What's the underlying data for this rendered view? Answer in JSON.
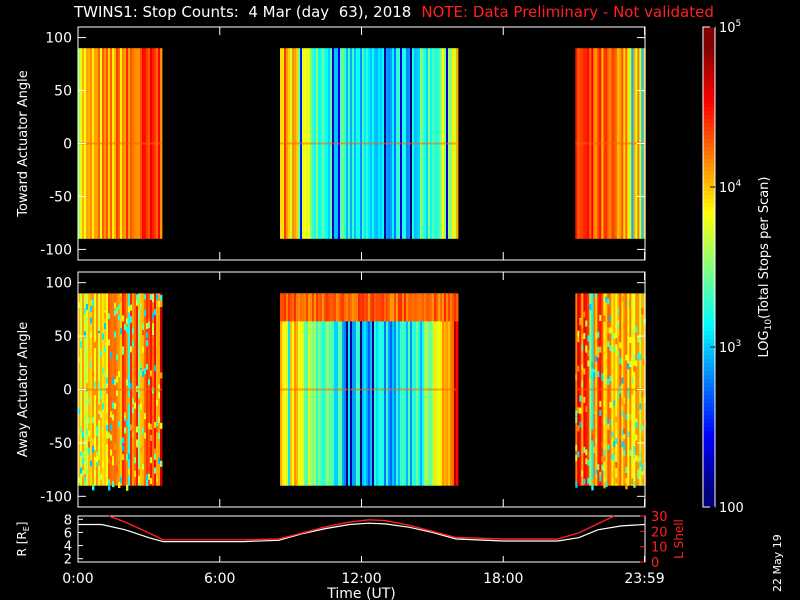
{
  "header": {
    "title": "TWINS1: Stop Counts:  4 Mar (day  63), 2018",
    "note": "NOTE: Data Preliminary - Not validated"
  },
  "date_stamp": "22 May 19",
  "colors": {
    "background": "#000000",
    "note": "#ff2020",
    "lshell": "#ff2020",
    "radius": "#ffffff"
  },
  "chart_data": [
    {
      "type": "heatmap",
      "name": "toward",
      "ylabel": "Toward Actuator Angle",
      "ylim": [
        -110,
        110
      ],
      "yticks": [
        "100",
        "50",
        "0",
        "-50",
        "-100"
      ],
      "xlim": [
        0,
        24
      ],
      "data_ylim": [
        -90,
        90
      ],
      "segments": [
        {
          "start": 0.0,
          "end": 3.55,
          "profile": "edge"
        },
        {
          "start": 8.55,
          "end": 16.0,
          "profile": "mid"
        },
        {
          "start": 21.05,
          "end": 23.98,
          "profile": "edge"
        }
      ],
      "zscale": "log",
      "zlim": [
        100,
        100000
      ]
    },
    {
      "type": "heatmap",
      "name": "away",
      "ylabel": "Away Actuator Angle",
      "ylim": [
        -110,
        110
      ],
      "yticks": [
        "100",
        "50",
        "0",
        "-50",
        "-100"
      ],
      "xlim": [
        0,
        24
      ],
      "data_ylim": [
        -90,
        90
      ],
      "segments": [
        {
          "start": 0.0,
          "end": 3.55,
          "profile": "edge"
        },
        {
          "start": 8.55,
          "end": 16.0,
          "profile": "mid"
        },
        {
          "start": 21.05,
          "end": 23.98,
          "profile": "edge"
        }
      ],
      "zscale": "log",
      "zlim": [
        100,
        100000
      ]
    },
    {
      "type": "line",
      "name": "orbit",
      "ylabel": "R [Rₑ]",
      "ylabel_base": "R [R",
      "ylabel_sub": "E",
      "ylabel_end": "]",
      "ylim": [
        1.5,
        8.5
      ],
      "yticks": [
        "8",
        "6",
        "4",
        "2"
      ],
      "y2label": "L Shell",
      "y2lim": [
        0,
        30
      ],
      "y2ticks": [
        "30",
        "20",
        "10",
        "0"
      ],
      "xlabel": "Time (UT)",
      "xlim": [
        0,
        24
      ],
      "xticks": [
        "0:00",
        "6:00",
        "12:00",
        "18:00",
        "23:59"
      ],
      "xtick_values": [
        0,
        6,
        12,
        18,
        23.98
      ],
      "series": [
        {
          "role": "R",
          "x": [
            0,
            1,
            2,
            3,
            3.6,
            5,
            7,
            8.5,
            9.5,
            10.5,
            11.5,
            12.3,
            13,
            14,
            15,
            16,
            18,
            20.3,
            21.2,
            22,
            23,
            23.98
          ],
          "values": [
            7.2,
            7.2,
            6.4,
            5.2,
            4.6,
            4.6,
            4.6,
            4.8,
            5.8,
            6.6,
            7.2,
            7.4,
            7.3,
            6.8,
            6.0,
            5.0,
            4.7,
            4.7,
            5.2,
            6.4,
            7.0,
            7.2
          ]
        },
        {
          "role": "L",
          "x": [
            1.3,
            2,
            3,
            3.6,
            5,
            7,
            8.5,
            9.5,
            10.5,
            11.5,
            12.3,
            13,
            14,
            15,
            16,
            18,
            20.3,
            21.2,
            22,
            22.7
          ],
          "values": [
            30,
            26,
            19,
            14.5,
            14.5,
            14.5,
            15,
            19,
            23,
            26,
            27.5,
            27,
            24,
            20,
            16,
            15,
            15,
            19,
            25,
            30
          ]
        }
      ]
    }
  ],
  "colorbar": {
    "label_base": "LOG",
    "label_sub": "10",
    "label_rest": "(Total Stops per Scan)",
    "ticks": [
      {
        "value": 100000,
        "base": "10",
        "exp": "5"
      },
      {
        "value": 10000,
        "base": "10",
        "exp": "4"
      },
      {
        "value": 1000,
        "base": "10",
        "exp": "3"
      },
      {
        "value": 100,
        "base": "100",
        "exp": ""
      }
    ],
    "zlim": [
      100,
      100000
    ]
  }
}
